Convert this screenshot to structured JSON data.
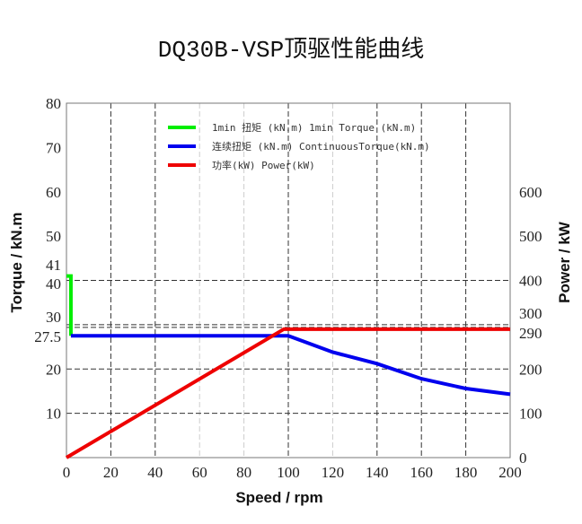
{
  "chart_data": {
    "type": "line",
    "title": "DQ30B-VSP顶驱性能曲线",
    "xlabel": "Speed / rpm",
    "ylabel": "Torque / kN.m",
    "y2label": "Power / kW",
    "xlim": [
      0,
      200
    ],
    "ylim": [
      0,
      80
    ],
    "y2lim": [
      0,
      800
    ],
    "xticks": [
      "0",
      "20",
      "40",
      "60",
      "80",
      "100",
      "120",
      "140",
      "160",
      "180",
      "200"
    ],
    "yticks": [
      10,
      20,
      27.5,
      30,
      40,
      41,
      50,
      60,
      70,
      80
    ],
    "yticklabels": [
      "10",
      "20",
      "27.5",
      "30",
      "40",
      "41",
      "50",
      "60",
      "70",
      "80"
    ],
    "y2ticks": [
      0,
      100,
      200,
      290,
      300,
      400,
      500,
      600
    ],
    "y2ticklabels": [
      "0",
      "100",
      "200",
      "290",
      "300",
      "400",
      "500",
      "600"
    ],
    "grid": true,
    "legend_placement": "top-left",
    "series": [
      {
        "name": "1min 扭矩 (kN.m)    1min  Torque  (kN.m)",
        "color": "#00ee00",
        "axis": "left",
        "x": [
          0,
          2,
          2
        ],
        "y": [
          41,
          41,
          27.5
        ]
      },
      {
        "name": "连续扭矩 (kN.m)    ContinuousTorque(kN.m)",
        "color": "#0000ee",
        "axis": "left",
        "x": [
          2,
          100,
          120,
          140,
          160,
          180,
          200
        ],
        "y": [
          27.5,
          27.5,
          23.8,
          21.2,
          17.8,
          15.6,
          14.3
        ]
      },
      {
        "name": "功率(kW)   Power(kW)",
        "color": "#ee0000",
        "axis": "right",
        "x": [
          0,
          98,
          200
        ],
        "y": [
          0,
          290,
          290
        ]
      }
    ]
  }
}
